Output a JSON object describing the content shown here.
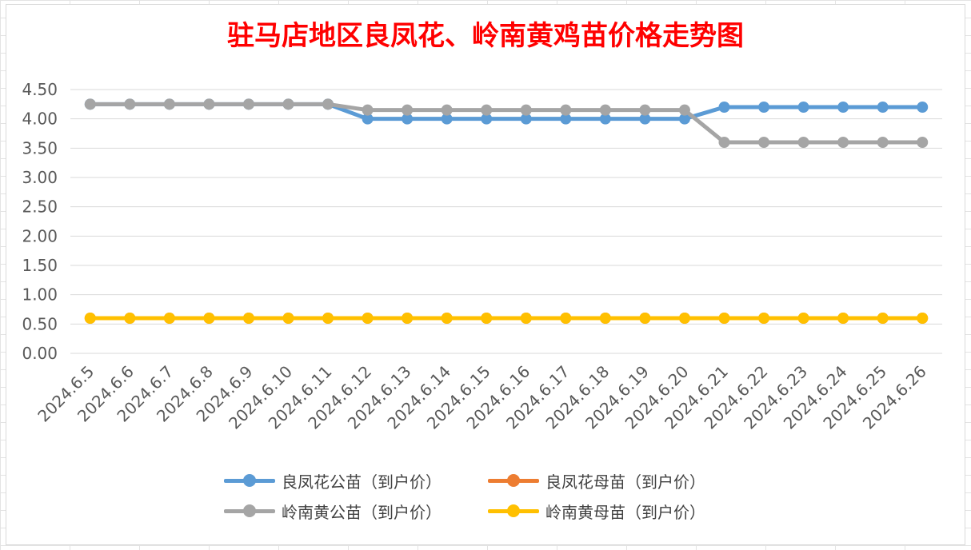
{
  "chart_data": {
    "type": "line",
    "title": "驻马店地区良凤花、岭南黄鸡苗价格走势图",
    "x": [
      "2024.6.5",
      "2024.6.6",
      "2024.6.7",
      "2024.6.8",
      "2024.6.9",
      "2024.6.10",
      "2024.6.11",
      "2024.6.12",
      "2024.6.13",
      "2024.6.14",
      "2024.6.15",
      "2024.6.16",
      "2024.6.17",
      "2024.6.18",
      "2024.6.19",
      "2024.6.20",
      "2024.6.21",
      "2024.6.22",
      "2024.6.23",
      "2024.6.24",
      "2024.6.25",
      "2024.6.26"
    ],
    "ylim": [
      0,
      4.5
    ],
    "yticks": [
      "0.00",
      "0.50",
      "1.00",
      "1.50",
      "2.00",
      "2.50",
      "3.00",
      "3.50",
      "4.00",
      "4.50"
    ],
    "grid": true,
    "legend_position": "bottom",
    "series": [
      {
        "name": "良凤花公苗（到户价）",
        "color": "#5b9bd5",
        "values": [
          4.25,
          4.25,
          4.25,
          4.25,
          4.25,
          4.25,
          4.25,
          4.0,
          4.0,
          4.0,
          4.0,
          4.0,
          4.0,
          4.0,
          4.0,
          4.0,
          4.2,
          4.2,
          4.2,
          4.2,
          4.2,
          4.2
        ]
      },
      {
        "name": "良凤花母苗（到户价）",
        "color": "#ed7d31",
        "values": [
          0.6,
          0.6,
          0.6,
          0.6,
          0.6,
          0.6,
          0.6,
          0.6,
          0.6,
          0.6,
          0.6,
          0.6,
          0.6,
          0.6,
          0.6,
          0.6,
          0.6,
          0.6,
          0.6,
          0.6,
          0.6,
          0.6
        ]
      },
      {
        "name": "岭南黄公苗（到户价）",
        "color": "#a5a5a5",
        "values": [
          4.25,
          4.25,
          4.25,
          4.25,
          4.25,
          4.25,
          4.25,
          4.15,
          4.15,
          4.15,
          4.15,
          4.15,
          4.15,
          4.15,
          4.15,
          4.15,
          3.6,
          3.6,
          3.6,
          3.6,
          3.6,
          3.6
        ]
      },
      {
        "name": "岭南黄母苗（到户价）",
        "color": "#ffc000",
        "values": [
          0.6,
          0.6,
          0.6,
          0.6,
          0.6,
          0.6,
          0.6,
          0.6,
          0.6,
          0.6,
          0.6,
          0.6,
          0.6,
          0.6,
          0.6,
          0.6,
          0.6,
          0.6,
          0.6,
          0.6,
          0.6,
          0.6
        ]
      }
    ]
  }
}
